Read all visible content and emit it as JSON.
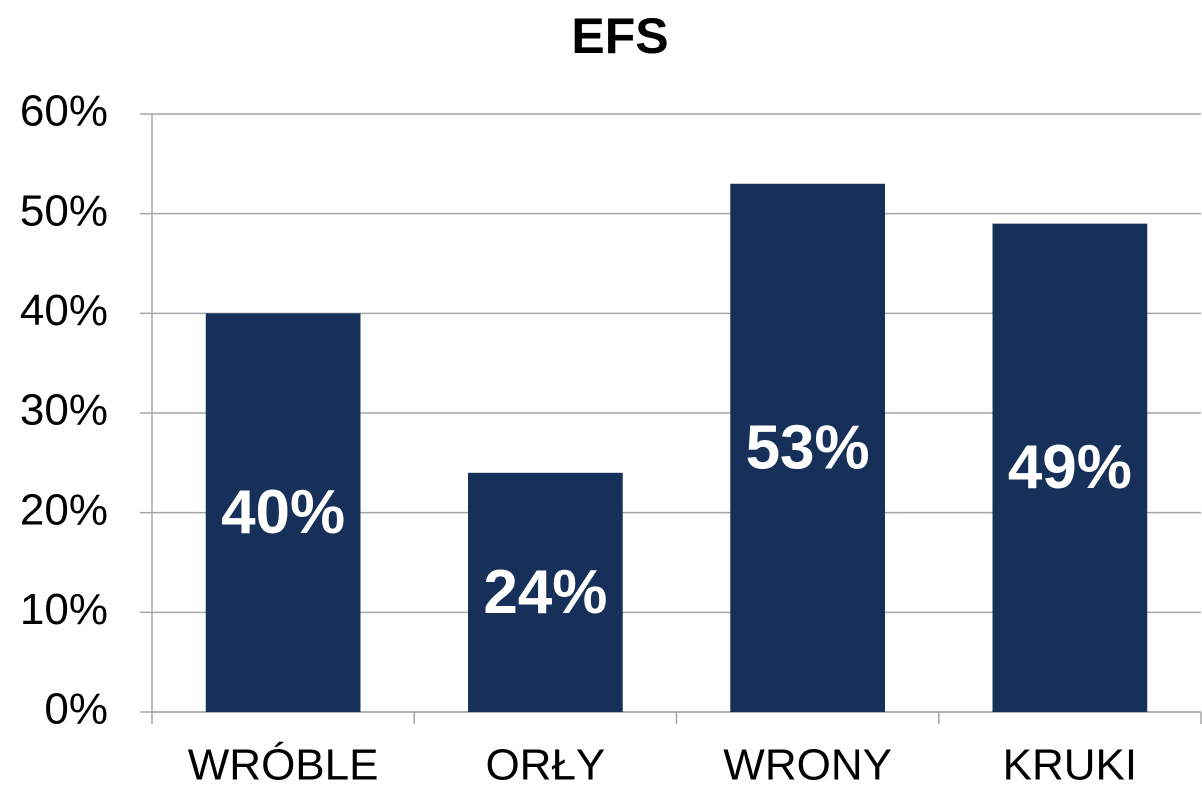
{
  "chart_data": {
    "type": "bar",
    "title": "EFS",
    "categories": [
      "WRÓBLE",
      "ORŁY",
      "WRONY",
      "KRUKI"
    ],
    "values": [
      40,
      24,
      53,
      49
    ],
    "value_labels": [
      "40%",
      "24%",
      "53%",
      "49%"
    ],
    "color": "#17305a",
    "ylim": [
      0,
      60
    ],
    "yticks": [
      {
        "value": 0,
        "label": "0%"
      },
      {
        "value": 10,
        "label": "10%"
      },
      {
        "value": 20,
        "label": "20%"
      },
      {
        "value": 30,
        "label": "30%"
      },
      {
        "value": 40,
        "label": "40%"
      },
      {
        "value": 50,
        "label": "50%"
      },
      {
        "value": 60,
        "label": "60%"
      }
    ],
    "grid": true
  }
}
